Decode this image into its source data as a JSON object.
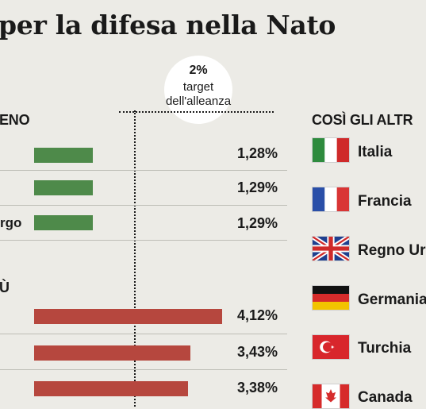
{
  "title": "per la difesa nella Nato",
  "left_header_top": "ENO",
  "left_header_bottom": "Ù",
  "right_header": "COSÌ GLI ALTR",
  "target": {
    "line1": "2%",
    "line2": "target",
    "line3": "dell'alleanza"
  },
  "chart_data": {
    "type": "bar",
    "orientation": "horizontal",
    "target_value": 2,
    "groups": [
      {
        "label": "ENO",
        "color": "#4e8a4a",
        "rows": [
          {
            "label": "",
            "value": 1.28,
            "display": "1,28%"
          },
          {
            "label": "",
            "value": 1.29,
            "display": "1,29%"
          },
          {
            "label": "rgo",
            "value": 1.29,
            "display": "1,29%"
          }
        ]
      },
      {
        "label": "Ù",
        "color": "#b6473e",
        "rows": [
          {
            "label": "",
            "value": 4.12,
            "display": "4,12%"
          },
          {
            "label": "",
            "value": 3.43,
            "display": "3,43%"
          },
          {
            "label": "",
            "value": 3.38,
            "display": "3,38%"
          }
        ]
      }
    ]
  },
  "countries": [
    {
      "name": "Italia",
      "flag": "italy-flag"
    },
    {
      "name": "Francia",
      "flag": "france-flag"
    },
    {
      "name": "Regno Ur",
      "flag": "uk-flag"
    },
    {
      "name": "Germania",
      "flag": "germany-flag"
    },
    {
      "name": "Turchia",
      "flag": "turkey-flag"
    },
    {
      "name": "Canada",
      "flag": "canada-flag"
    }
  ]
}
